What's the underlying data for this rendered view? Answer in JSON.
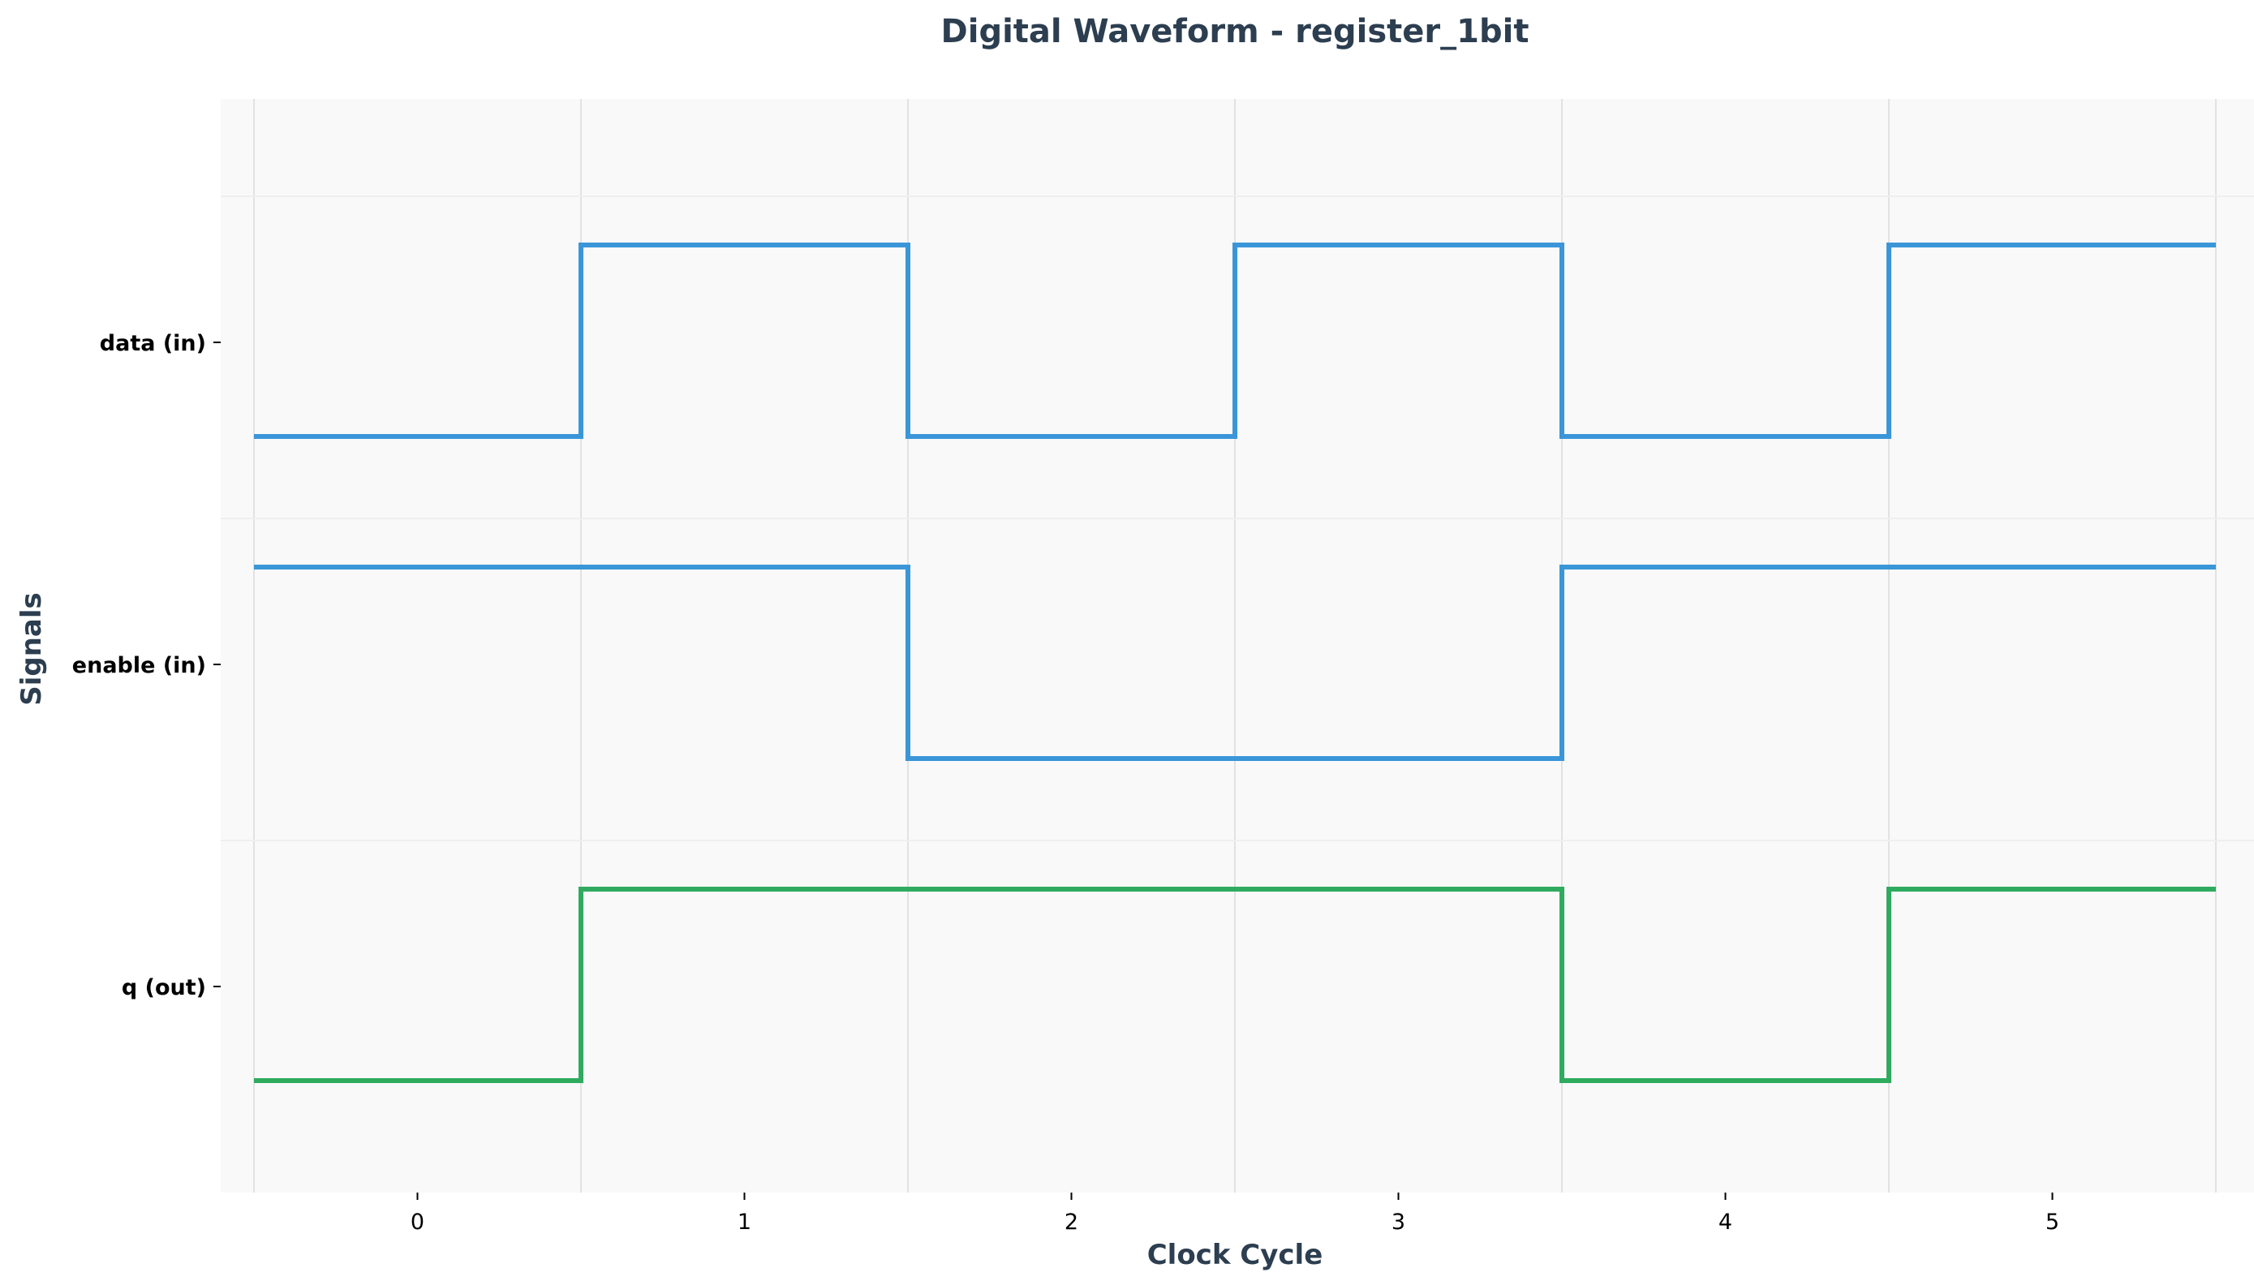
{
  "chart_data": {
    "type": "line",
    "title": "Digital Waveform - register_1bit",
    "xlabel": "Clock Cycle",
    "ylabel": "Signals",
    "xlim": [
      -0.5,
      5.5
    ],
    "x_ticks": [
      "0",
      "1",
      "2",
      "3",
      "4",
      "5"
    ],
    "grid": true,
    "step": true,
    "series": [
      {
        "name": "data (in)",
        "values": [
          0,
          1,
          0,
          1,
          0,
          1
        ],
        "color": "#3a96d8"
      },
      {
        "name": "enable (in)",
        "values": [
          1,
          1,
          0,
          0,
          1,
          1
        ],
        "color": "#3a96d8"
      },
      {
        "name": "q (out)",
        "values": [
          0,
          1,
          1,
          1,
          0,
          1
        ],
        "color": "#2eab5f"
      }
    ]
  },
  "colors": {
    "plot_background": "#f9f9f9",
    "grid": "#e2e2e2",
    "text": "#2c3e50"
  }
}
